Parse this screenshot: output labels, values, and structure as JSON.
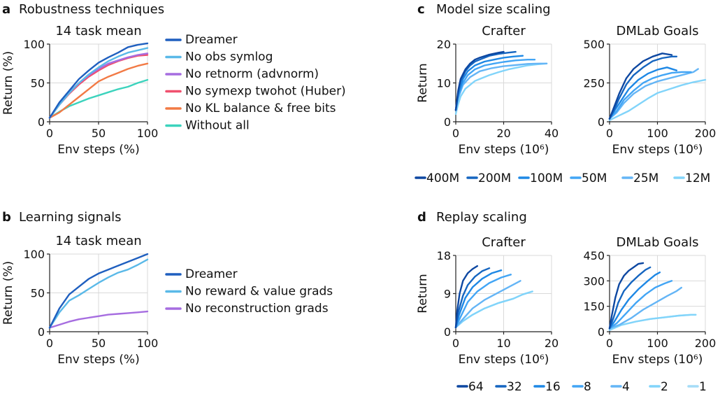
{
  "panels": [
    {
      "letter": "a",
      "title": "Robustness techniques"
    },
    {
      "letter": "b",
      "title": "Learning signals"
    },
    {
      "letter": "c",
      "title": "Model size scaling"
    },
    {
      "letter": "d",
      "title": "Replay scaling"
    }
  ],
  "chart_data": [
    {
      "id": "a",
      "type": "line",
      "title": "14 task mean",
      "xlabel": "Env steps (%)",
      "ylabel": "Return (%)",
      "xlim": [
        0,
        100
      ],
      "ylim": [
        0,
        100
      ],
      "xticks": [
        0,
        50,
        100
      ],
      "yticks": [
        0,
        50,
        100
      ],
      "grid": true,
      "legend_position": "right",
      "x": [
        0,
        10,
        20,
        30,
        40,
        50,
        60,
        70,
        80,
        90,
        100
      ],
      "series": [
        {
          "name": "Dreamer",
          "color": "#1f5fbf",
          "values": [
            5,
            25,
            40,
            55,
            66,
            76,
            83,
            89,
            96,
            99,
            101
          ]
        },
        {
          "name": "No obs symlog",
          "color": "#5ab9e8",
          "values": [
            5,
            22,
            37,
            50,
            61,
            70,
            78,
            84,
            89,
            92,
            95
          ]
        },
        {
          "name": "No retnorm (advnorm)",
          "color": "#a66de0",
          "values": [
            5,
            24,
            38,
            50,
            60,
            68,
            75,
            79,
            83,
            86,
            88
          ]
        },
        {
          "name": "No symexp twohot (Huber)",
          "color": "#f0506e",
          "values": [
            5,
            22,
            36,
            48,
            58,
            66,
            73,
            78,
            82,
            85,
            86
          ]
        },
        {
          "name": "No KL balance & free bits",
          "color": "#f27a45",
          "values": [
            5,
            12,
            22,
            32,
            42,
            52,
            58,
            63,
            68,
            72,
            75
          ]
        },
        {
          "name": "Without all",
          "color": "#3cd3bd",
          "values": [
            5,
            13,
            20,
            25,
            30,
            34,
            38,
            42,
            45,
            50,
            54
          ]
        }
      ]
    },
    {
      "id": "b",
      "type": "line",
      "title": "14 task mean",
      "xlabel": "Env steps (%)",
      "ylabel": "Return (%)",
      "xlim": [
        0,
        100
      ],
      "ylim": [
        0,
        100
      ],
      "xticks": [
        0,
        50,
        100
      ],
      "yticks": [
        0,
        50,
        100
      ],
      "grid": true,
      "legend_position": "right",
      "x": [
        0,
        10,
        20,
        30,
        40,
        50,
        60,
        70,
        80,
        90,
        100
      ],
      "series": [
        {
          "name": "Dreamer",
          "color": "#1f5fbf",
          "values": [
            5,
            30,
            48,
            58,
            68,
            75,
            80,
            85,
            90,
            95,
            100
          ]
        },
        {
          "name": "No reward & value grads",
          "color": "#5ab9e8",
          "values": [
            5,
            25,
            40,
            47,
            55,
            63,
            70,
            76,
            80,
            86,
            93
          ]
        },
        {
          "name": "No reconstruction grads",
          "color": "#a66de0",
          "values": [
            5,
            9,
            13,
            16,
            18,
            20,
            22,
            23,
            24,
            25,
            26
          ]
        }
      ]
    },
    {
      "id": "c1",
      "type": "line",
      "title": "Crafter",
      "xlabel": "Env steps (10⁶)",
      "ylabel": "Return",
      "xlim": [
        0,
        40
      ],
      "ylim": [
        0,
        20
      ],
      "xticks": [
        0,
        20,
        40
      ],
      "yticks": [
        0,
        10,
        20
      ],
      "grid": true,
      "series": [
        {
          "name": "400M",
          "color": "#0d47a1",
          "x": [
            0,
            1,
            2,
            4,
            6,
            8,
            10,
            14,
            18,
            20
          ],
          "values": [
            3,
            8,
            11,
            13.5,
            15,
            16,
            16.5,
            17.3,
            17.8,
            18
          ]
        },
        {
          "name": "200M",
          "color": "#1565c0",
          "x": [
            0,
            1,
            2,
            4,
            6,
            8,
            10,
            14,
            18,
            22,
            25
          ],
          "values": [
            3,
            7.5,
            10.5,
            13,
            14.5,
            15.5,
            16,
            17,
            17.5,
            17.8,
            18
          ]
        },
        {
          "name": "100M",
          "color": "#1e88e5",
          "x": [
            0,
            1,
            3,
            5,
            8,
            12,
            16,
            20,
            24,
            28
          ],
          "values": [
            3,
            7,
            11,
            13,
            14.5,
            15.5,
            16,
            16.5,
            16.8,
            17
          ]
        },
        {
          "name": "50M",
          "color": "#42a5f5",
          "x": [
            0,
            1,
            3,
            5,
            8,
            12,
            16,
            20,
            25,
            30,
            33
          ],
          "values": [
            3,
            6.5,
            10,
            12,
            13.5,
            14.5,
            15,
            15.4,
            15.8,
            16,
            16
          ]
        },
        {
          "name": "25M",
          "color": "#64b5f6",
          "x": [
            0,
            1,
            3,
            6,
            10,
            15,
            20,
            25,
            30,
            35,
            38
          ],
          "values": [
            3,
            6,
            9.5,
            11.5,
            13,
            13.8,
            14.3,
            14.6,
            14.9,
            15,
            15
          ]
        },
        {
          "name": "12M",
          "color": "#81d4fa",
          "x": [
            0,
            1,
            2,
            4,
            6,
            8,
            10,
            14,
            18,
            22,
            26,
            30,
            34,
            38
          ],
          "values": [
            2,
            4.5,
            6.5,
            8.5,
            9.5,
            10.5,
            11,
            12,
            12.8,
            13.5,
            14,
            14.5,
            14.8,
            15
          ]
        }
      ]
    },
    {
      "id": "c2",
      "type": "line",
      "title": "DMLab Goals",
      "xlabel": "Env steps (10⁶)",
      "ylabel": "",
      "xlim": [
        0,
        200
      ],
      "ylim": [
        0,
        500
      ],
      "xticks": [
        0,
        100,
        200
      ],
      "yticks": [
        0,
        250,
        500
      ],
      "grid": true,
      "series": [
        {
          "name": "400M",
          "color": "#0d47a1",
          "x": [
            0,
            10,
            20,
            35,
            50,
            70,
            90,
            110,
            130
          ],
          "values": [
            20,
            100,
            180,
            280,
            340,
            390,
            420,
            440,
            430
          ]
        },
        {
          "name": "200M",
          "color": "#1565c0",
          "x": [
            0,
            10,
            20,
            35,
            50,
            70,
            90,
            110,
            130,
            140
          ],
          "values": [
            20,
            80,
            150,
            240,
            300,
            350,
            390,
            410,
            420,
            420
          ]
        },
        {
          "name": "100M",
          "color": "#1e88e5",
          "x": [
            0,
            10,
            25,
            40,
            60,
            80,
            100,
            120,
            140
          ],
          "values": [
            20,
            70,
            140,
            210,
            270,
            310,
            335,
            350,
            330
          ]
        },
        {
          "name": "50M",
          "color": "#42a5f5",
          "x": [
            0,
            15,
            30,
            50,
            70,
            90,
            110,
            130,
            150,
            170
          ],
          "values": [
            20,
            70,
            140,
            200,
            250,
            280,
            300,
            315,
            320,
            320
          ]
        },
        {
          "name": "25M",
          "color": "#64b5f6",
          "x": [
            0,
            15,
            30,
            50,
            75,
            100,
            125,
            150,
            175,
            185
          ],
          "values": [
            20,
            60,
            120,
            180,
            230,
            260,
            280,
            300,
            320,
            340
          ]
        },
        {
          "name": "12M",
          "color": "#81d4fa",
          "x": [
            0,
            20,
            40,
            60,
            80,
            100,
            125,
            150,
            175,
            200
          ],
          "values": [
            10,
            40,
            70,
            110,
            150,
            185,
            210,
            235,
            255,
            270
          ]
        }
      ]
    },
    {
      "id": "d1",
      "type": "line",
      "title": "Crafter",
      "xlabel": "Env steps (10⁶)",
      "ylabel": "Return",
      "xlim": [
        0,
        20
      ],
      "ylim": [
        0,
        18
      ],
      "xticks": [
        0,
        10,
        20
      ],
      "yticks": [
        0,
        9,
        18
      ],
      "grid": true,
      "series": [
        {
          "name": "64",
          "color": "#0d47a1",
          "x": [
            0,
            0.3,
            0.8,
            1.5,
            2.5,
            3.5,
            4.5
          ],
          "values": [
            1,
            5,
            9,
            12,
            13.8,
            14.8,
            15.5
          ]
        },
        {
          "name": "32",
          "color": "#1565c0",
          "x": [
            0,
            0.5,
            1.5,
            2.5,
            4,
            5.5,
            7
          ],
          "values": [
            1,
            4.5,
            8.5,
            11,
            13,
            14.3,
            15
          ]
        },
        {
          "name": "16",
          "color": "#1e88e5",
          "x": [
            0,
            0.7,
            2,
            3.5,
            5.5,
            7.5,
            9.5
          ],
          "values": [
            1,
            4,
            8,
            10.5,
            12.5,
            13.8,
            14.5
          ]
        },
        {
          "name": "8",
          "color": "#42a5f5",
          "x": [
            0,
            1,
            2.5,
            4.5,
            7,
            9.5,
            11.5
          ],
          "values": [
            1,
            3.5,
            7,
            9.5,
            11.5,
            12.8,
            13.5
          ]
        },
        {
          "name": "4",
          "color": "#64b5f6",
          "x": [
            0,
            1.5,
            3.5,
            6,
            9,
            11.5,
            13.5
          ],
          "values": [
            1,
            3,
            5.5,
            7.5,
            9.3,
            10.8,
            12
          ]
        },
        {
          "name": "2",
          "color": "#81d4fa",
          "x": [
            0,
            1.5,
            3.5,
            6,
            9,
            12,
            14,
            16
          ],
          "values": [
            1,
            2.5,
            4,
            5.5,
            6.8,
            7.8,
            8.8,
            9.5
          ]
        },
        {
          "name": "1",
          "color": "#a5dcf7",
          "x": [
            0,
            1.5,
            3.5,
            6,
            9,
            12,
            14,
            16
          ],
          "values": [
            1,
            2.5,
            4,
            5.5,
            6.8,
            7.8,
            8.8,
            9.5
          ]
        }
      ]
    },
    {
      "id": "d2",
      "type": "line",
      "title": "DMLab Goals",
      "xlabel": "Env steps (10⁶)",
      "ylabel": "",
      "xlim": [
        0,
        200
      ],
      "ylim": [
        0,
        450
      ],
      "xticks": [
        0,
        100,
        200
      ],
      "yticks": [
        0,
        150,
        300,
        450
      ],
      "grid": true,
      "series": [
        {
          "name": "64",
          "color": "#0d47a1",
          "x": [
            0,
            5,
            12,
            20,
            30,
            40,
            50,
            60,
            70
          ],
          "values": [
            20,
            100,
            200,
            280,
            330,
            360,
            380,
            400,
            405
          ]
        },
        {
          "name": "32",
          "color": "#1565c0",
          "x": [
            0,
            8,
            18,
            30,
            45,
            60,
            75,
            85
          ],
          "values": [
            20,
            80,
            170,
            240,
            290,
            330,
            365,
            380
          ]
        },
        {
          "name": "16",
          "color": "#1e88e5",
          "x": [
            0,
            10,
            25,
            40,
            60,
            80,
            95,
            105
          ],
          "values": [
            20,
            60,
            130,
            190,
            250,
            300,
            335,
            350
          ]
        },
        {
          "name": "8",
          "color": "#42a5f5",
          "x": [
            0,
            15,
            35,
            55,
            75,
            95,
            115,
            130
          ],
          "values": [
            20,
            50,
            110,
            170,
            220,
            260,
            285,
            300
          ]
        },
        {
          "name": "4",
          "color": "#64b5f6",
          "x": [
            0,
            20,
            45,
            70,
            95,
            120,
            140,
            150
          ],
          "values": [
            20,
            40,
            80,
            130,
            170,
            210,
            240,
            260
          ]
        },
        {
          "name": "2",
          "color": "#81d4fa",
          "x": [
            0,
            25,
            55,
            85,
            115,
            145,
            170,
            180
          ],
          "values": [
            10,
            40,
            60,
            75,
            85,
            95,
            100,
            100
          ]
        },
        {
          "name": "1",
          "color": "#a5dcf7",
          "x": [
            0,
            25,
            55,
            85,
            115,
            145,
            170,
            180
          ],
          "values": [
            10,
            40,
            60,
            75,
            85,
            95,
            100,
            100
          ]
        }
      ]
    }
  ],
  "shared_legends": {
    "c": {
      "labels": [
        "400M",
        "200M",
        "100M",
        "50M",
        "25M",
        "12M"
      ],
      "colors": [
        "#0d47a1",
        "#1565c0",
        "#1e88e5",
        "#42a5f5",
        "#64b5f6",
        "#81d4fa"
      ]
    },
    "d": {
      "labels": [
        "64",
        "32",
        "16",
        "8",
        "4",
        "2",
        "1"
      ],
      "colors": [
        "#0d47a1",
        "#1565c0",
        "#1e88e5",
        "#42a5f5",
        "#64b5f6",
        "#81d4fa",
        "#a5dcf7"
      ]
    }
  }
}
